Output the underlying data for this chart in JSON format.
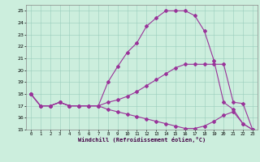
{
  "xlabel": "Windchill (Refroidissement éolien,°C)",
  "bg_color": "#cceedd",
  "line_color": "#993399",
  "ylim": [
    15,
    25.5
  ],
  "xlim": [
    -0.5,
    23.5
  ],
  "yticks": [
    15,
    16,
    17,
    18,
    19,
    20,
    21,
    22,
    23,
    24,
    25
  ],
  "xticks": [
    0,
    1,
    2,
    3,
    4,
    5,
    6,
    7,
    8,
    9,
    10,
    11,
    12,
    13,
    14,
    15,
    16,
    17,
    18,
    19,
    20,
    21,
    22,
    23
  ],
  "line1_x": [
    0,
    1,
    2,
    3,
    4,
    5,
    6,
    7,
    8,
    9,
    10,
    11,
    12,
    13,
    14,
    15,
    16,
    17,
    18,
    19,
    20,
    21,
    22,
    23
  ],
  "line1_y": [
    18,
    17,
    17,
    17.3,
    17.0,
    17.0,
    17.0,
    17.0,
    19.0,
    20.3,
    21.5,
    22.3,
    23.7,
    24.4,
    25.0,
    25.0,
    25.0,
    24.6,
    23.3,
    20.8,
    17.3,
    16.7,
    15.5,
    15.0
  ],
  "line2_x": [
    0,
    1,
    2,
    3,
    4,
    5,
    6,
    7,
    8,
    9,
    10,
    11,
    12,
    13,
    14,
    15,
    16,
    17,
    18,
    19,
    20,
    21,
    22,
    23
  ],
  "line2_y": [
    18,
    17,
    17,
    17.3,
    17.0,
    17.0,
    17.0,
    17.0,
    17.3,
    17.5,
    17.8,
    18.2,
    18.7,
    19.2,
    19.7,
    20.2,
    20.5,
    20.5,
    20.5,
    20.5,
    20.5,
    17.3,
    17.2,
    15.0
  ],
  "line3_x": [
    0,
    1,
    2,
    3,
    4,
    5,
    6,
    7,
    8,
    9,
    10,
    11,
    12,
    13,
    14,
    15,
    16,
    17,
    18,
    19,
    20,
    21,
    22,
    23
  ],
  "line3_y": [
    18,
    17,
    17,
    17.3,
    17.0,
    17.0,
    17.0,
    17.0,
    16.7,
    16.5,
    16.3,
    16.1,
    15.9,
    15.7,
    15.5,
    15.3,
    15.1,
    15.1,
    15.3,
    15.7,
    16.2,
    16.5,
    15.5,
    15.0
  ]
}
